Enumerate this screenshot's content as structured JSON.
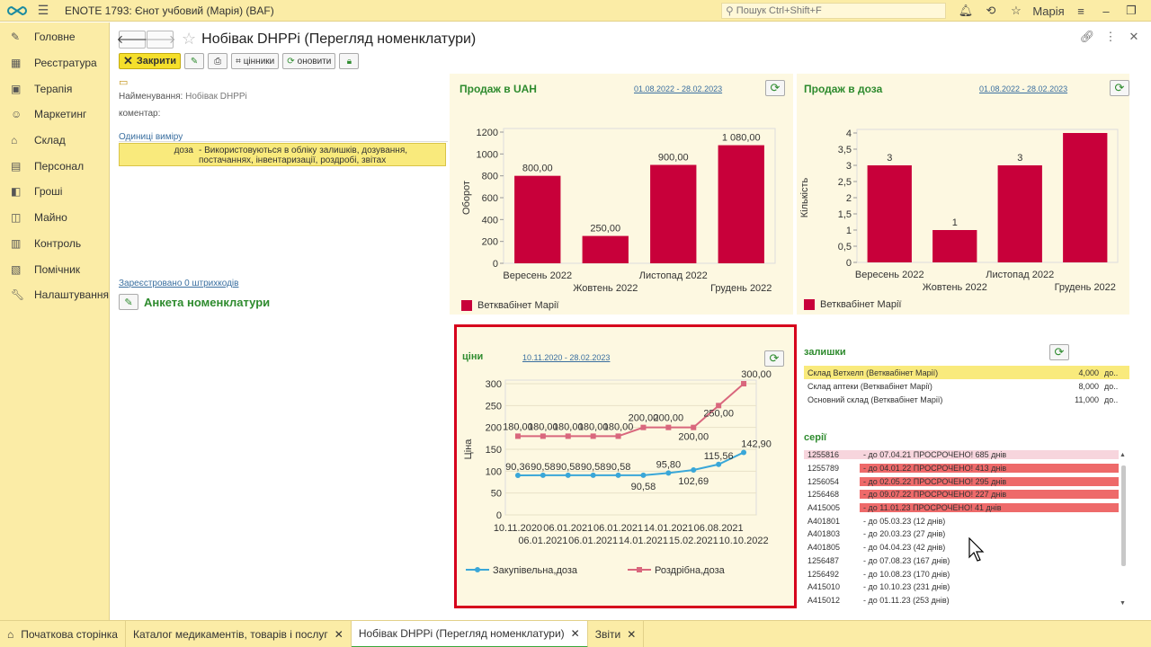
{
  "app": {
    "title": "ENOTE 1793: Єнот учбовий (Марія)  (BAF)",
    "search_placeholder": "Пошук Ctrl+Shift+F",
    "user": "Марія",
    "accent": "#fbeca6"
  },
  "sidebar": {
    "items": [
      {
        "label": "Головне"
      },
      {
        "label": "Реєстратура"
      },
      {
        "label": "Терапія"
      },
      {
        "label": "Маркетинг"
      },
      {
        "label": "Склад"
      },
      {
        "label": "Персонал"
      },
      {
        "label": "Гроші"
      },
      {
        "label": "Майно"
      },
      {
        "label": "Контроль"
      },
      {
        "label": "Помічник"
      },
      {
        "label": "Налаштування"
      }
    ]
  },
  "header": {
    "title": "Нобівак DHPPі (Перегляд номенклатури)"
  },
  "toolbar": {
    "close": "Закрити",
    "price_tags": "цінники",
    "refresh": "оновити"
  },
  "form": {
    "name_label": "Найменування:",
    "name_value": "Нобівак DHPPі",
    "comment_label": "коментар:",
    "units_title": "Одиниці виміру",
    "unit_name": "доза",
    "unit_desc": "- Використовуються в обліку залишків, дозування, постачаннях, інвентаризації, роздробі, звітах",
    "barcodes_link": "Зареєстровано 0 штрихкодів",
    "anketa": "Анкета номенклатури"
  },
  "sales_uah": {
    "title": "Продаж в UAH",
    "period": "01.08.2022 - 28.02.2023",
    "legend": "Ветквабінет Марії"
  },
  "sales_dose": {
    "title": "Продаж в доза",
    "period": "01.08.2022 - 28.02.2023",
    "legend": "Ветквабінет Марії"
  },
  "prices": {
    "title": "ціни",
    "period": "10.11.2020 - 28.02.2023"
  },
  "chart_data": [
    {
      "type": "bar",
      "title": "Продаж в UAH",
      "ylabel": "Оборот",
      "ylim": [
        0,
        1200
      ],
      "yticks": [
        "0",
        "200",
        "400",
        "600",
        "800",
        "1000",
        "1200"
      ],
      "categories": [
        "Вересень 2022",
        "Жовтень 2022",
        "Листопад 2022",
        "Грудень 2022"
      ],
      "values": [
        800,
        250,
        900,
        1080
      ],
      "labels": [
        "800,00",
        "250,00",
        "900,00",
        "1 080,00"
      ],
      "series_name": "Ветквабінет Марії",
      "color": "#c8003a"
    },
    {
      "type": "bar",
      "title": "Продаж в доза",
      "ylabel": "Кількість",
      "ylim": [
        0,
        4
      ],
      "yticks": [
        "0",
        "0,5",
        "1",
        "1,5",
        "2",
        "2,5",
        "3",
        "3,5",
        "4"
      ],
      "categories": [
        "Вересень 2022",
        "Жовтень 2022",
        "Листопад 2022",
        "Грудень 2022"
      ],
      "values": [
        3,
        1,
        3,
        4
      ],
      "labels": [
        "3",
        "1",
        "3",
        ""
      ],
      "series_name": "Ветквабінет Марії",
      "color": "#c8003a"
    },
    {
      "type": "line",
      "title": "ціни",
      "ylabel": "Ціна",
      "ylim": [
        0,
        300
      ],
      "yticks": [
        "0",
        "50",
        "100",
        "150",
        "200",
        "250",
        "300"
      ],
      "x_top": [
        "10.11.2020",
        "06.01.2021",
        "06.01.2021",
        "14.01.2021",
        "06.08.2021"
      ],
      "x_bottom": [
        "06.01.2021",
        "06.01.2021",
        "14.01.2021",
        "15.02.2021",
        "10.10.2022"
      ],
      "series": [
        {
          "name": "Закупівельна,доза",
          "color": "#3aa7d8",
          "values": [
            90.36,
            90.58,
            90.58,
            90.58,
            90.58,
            90.58,
            95.8,
            102.69,
            115.56,
            142.9
          ],
          "labels": [
            "90,36",
            "90,58",
            "90,58",
            "90,58",
            "90,58",
            "90,58",
            "95,80",
            "102,69",
            "115,56",
            "142,90"
          ]
        },
        {
          "name": "Роздрібна,доза",
          "color": "#d9677d",
          "values": [
            180,
            180,
            180,
            180,
            180,
            200,
            200,
            200,
            250,
            300
          ],
          "labels": [
            "180,00",
            "180,00",
            "180,00",
            "180,00",
            "180,00",
            "200,00",
            "200,00",
            "200,00",
            "250,00",
            "300,00"
          ]
        }
      ]
    }
  ],
  "stock": {
    "title": "залишки",
    "rows": [
      {
        "name": "Склад Ветхелп (Ветквабінет Марії)",
        "qty": "4,000",
        "unit": "до.."
      },
      {
        "name": "Склад аптеки (Ветквабінет Марії)",
        "qty": "8,000",
        "unit": "до.."
      },
      {
        "name": "Основний склад (Ветквабінет Марії)",
        "qty": "11,000",
        "unit": "до.."
      }
    ]
  },
  "series_list": {
    "title": "серії",
    "rows": [
      {
        "code": "1255816",
        "text": "- до 07.04.21 ПРОСРОЧЕНО! 685 днів",
        "state": "pink"
      },
      {
        "code": "1255789",
        "text": "- до 04.01.22 ПРОСРОЧЕНО! 413 днів",
        "state": "red"
      },
      {
        "code": "1256054",
        "text": "- до 02.05.22 ПРОСРОЧЕНО! 295 днів",
        "state": "red"
      },
      {
        "code": "1256468",
        "text": "- до 09.07.22 ПРОСРОЧЕНО! 227 днів",
        "state": "red"
      },
      {
        "code": "A415005",
        "text": "- до 11.01.23 ПРОСРОЧЕНО! 41 днів",
        "state": "red"
      },
      {
        "code": "A401801",
        "text": "- до 05.03.23 (12 днів)",
        "state": "ok"
      },
      {
        "code": "A401803",
        "text": "- до 20.03.23 (27 днів)",
        "state": "ok"
      },
      {
        "code": "A401805",
        "text": "- до 04.04.23 (42 днів)",
        "state": "ok"
      },
      {
        "code": "1256487",
        "text": "- до 07.08.23 (167 днів)",
        "state": "ok"
      },
      {
        "code": "1256492",
        "text": "- до 10.08.23 (170 днів)",
        "state": "ok"
      },
      {
        "code": "A415010",
        "text": "- до 10.10.23 (231 днів)",
        "state": "ok"
      },
      {
        "code": "A415012",
        "text": "- до 01.11.23 (253 днів)",
        "state": "ok"
      }
    ]
  },
  "tabs": [
    {
      "label": "Початкова сторінка",
      "close": false,
      "active": false
    },
    {
      "label": "Каталог медикаментів, товарів і послуг",
      "close": true,
      "active": false
    },
    {
      "label": "Нобівак DHPPі (Перегляд номенклатури)",
      "close": true,
      "active": true
    },
    {
      "label": "Звіти",
      "close": true,
      "active": false
    }
  ],
  "highlight_color": "#d6001c"
}
